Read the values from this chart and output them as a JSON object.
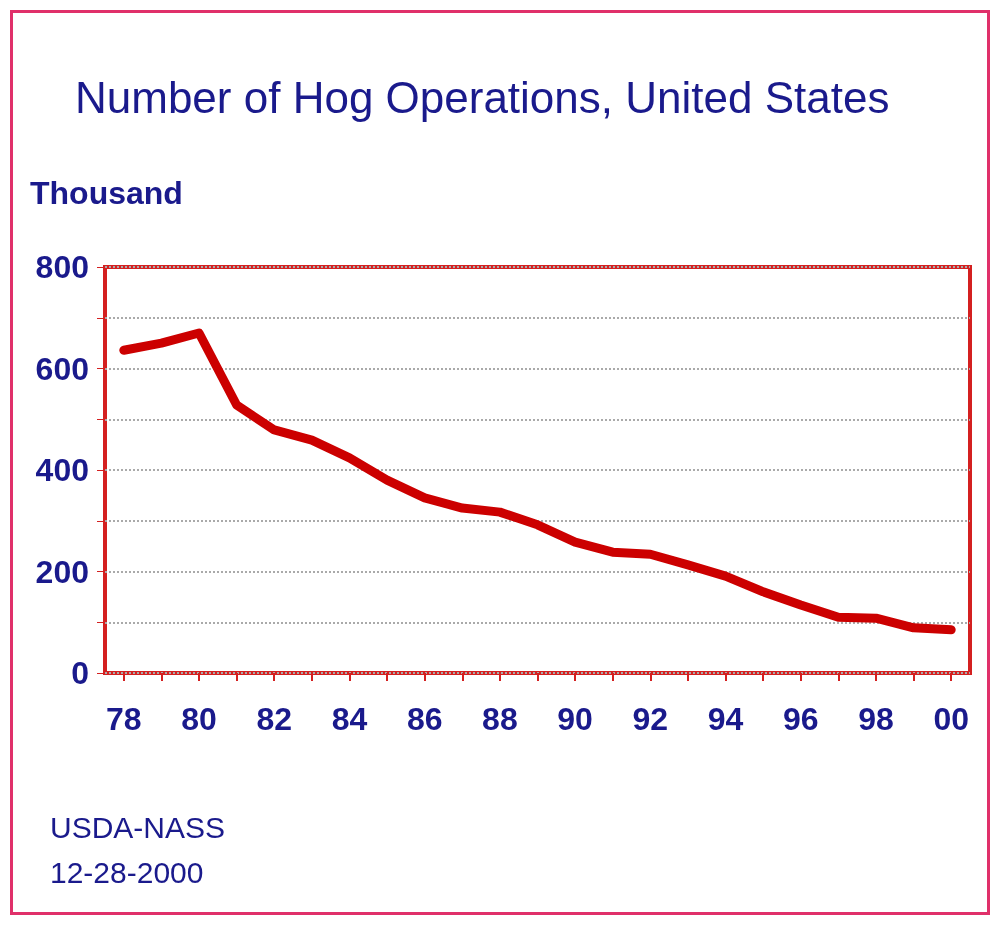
{
  "chart_data": {
    "type": "line",
    "title": "Number of Hog Operations, United States",
    "ylabel": "Thousand",
    "categories": [
      "78",
      null,
      "80",
      null,
      "82",
      null,
      "84",
      null,
      "86",
      null,
      "88",
      null,
      "90",
      null,
      "92",
      null,
      "94",
      null,
      "96",
      null,
      "98",
      null,
      "00"
    ],
    "series": [
      {
        "color": "#cc0000",
        "values": [
          636,
          650,
          670,
          528,
          479,
          459,
          424,
          380,
          345,
          325,
          317,
          292,
          258,
          238,
          234,
          213,
          191,
          160,
          134,
          110,
          108,
          89,
          85
        ]
      }
    ],
    "ylim": [
      0,
      800
    ],
    "yticks": [
      0,
      {
        "value": 100,
        "label": null
      },
      200,
      {
        "value": 300,
        "label": null
      },
      400,
      {
        "value": 500,
        "label": null
      },
      600,
      {
        "value": 700,
        "label": null
      },
      800
    ],
    "grid": "y",
    "marker": "none",
    "line_style": "solid",
    "annotations": [
      "USDA-NASS",
      "12-28-2000"
    ]
  }
}
